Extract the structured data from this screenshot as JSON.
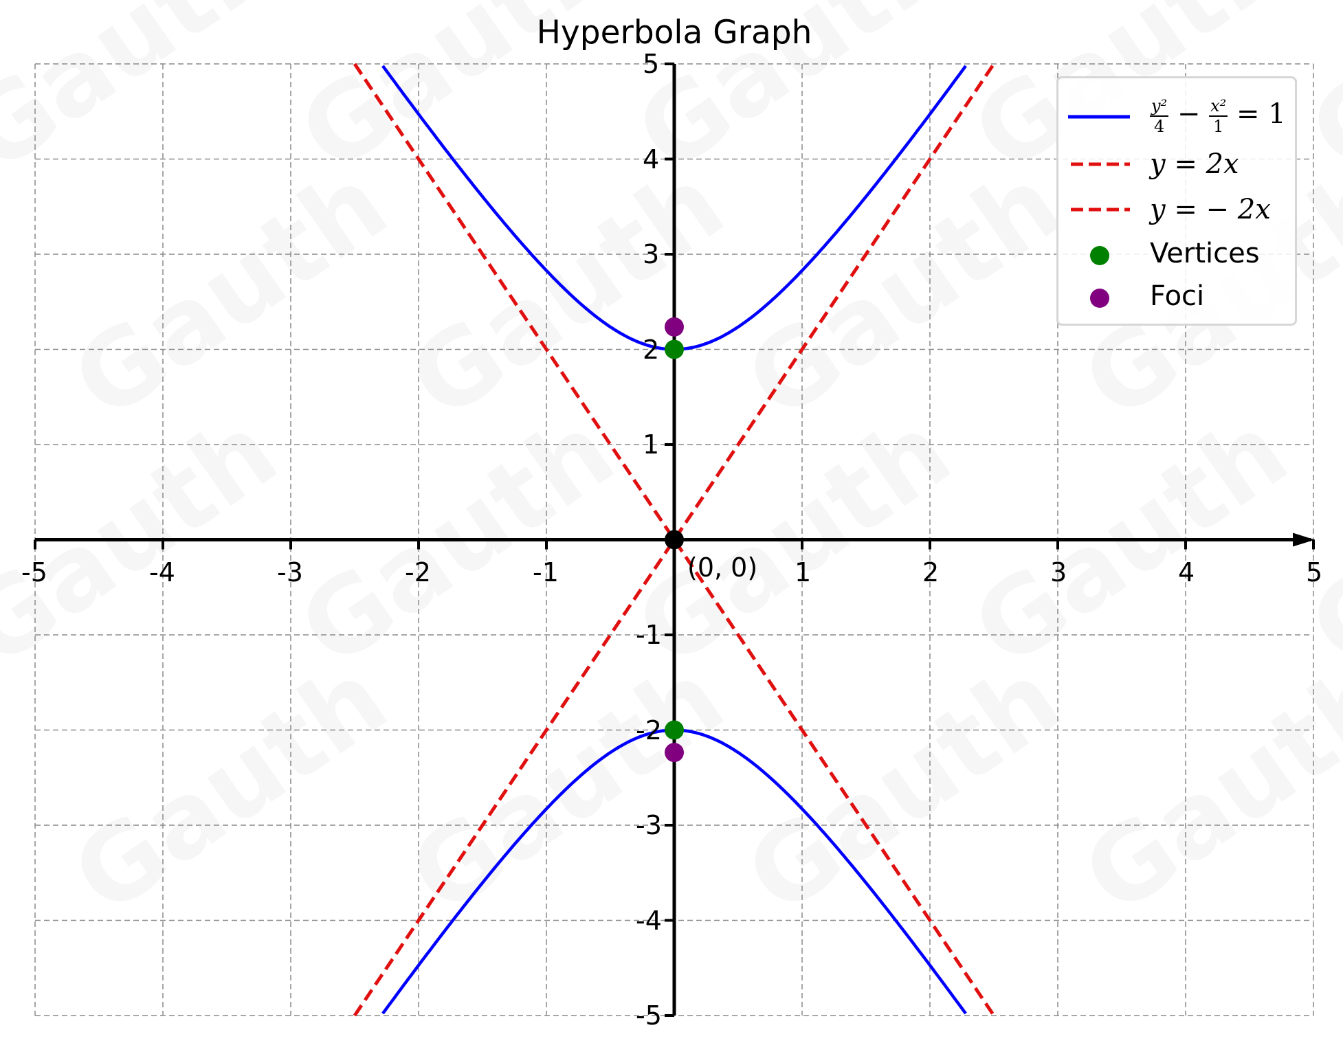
{
  "chart_data": {
    "type": "line",
    "title": "Hyperbola Graph",
    "xlabel": "",
    "ylabel": "",
    "xlim": [
      -5,
      5
    ],
    "ylim": [
      -5,
      5
    ],
    "grid": true,
    "legend_position": "upper right",
    "x_ticks": [
      "-5",
      "-4",
      "-3",
      "-2",
      "-1",
      "1",
      "2",
      "3",
      "4",
      "5"
    ],
    "y_ticks": [
      "5",
      "4",
      "3",
      "2",
      "1",
      "-1",
      "-2",
      "-3",
      "-4",
      "-5"
    ],
    "series": [
      {
        "name": "y^2/4 - x^2/1 = 1",
        "kind": "hyperbola",
        "color": "#0000ff",
        "style": "solid",
        "a": 2,
        "b": 1,
        "orientation": "vertical"
      },
      {
        "name": "y = 2x",
        "kind": "line",
        "color": "#e01010",
        "style": "dashed",
        "slope": 2,
        "intercept": 0
      },
      {
        "name": "y = -2x",
        "kind": "line",
        "color": "#e01010",
        "style": "dashed",
        "slope": -2,
        "intercept": 0
      },
      {
        "name": "Vertices",
        "kind": "scatter",
        "color": "#008000",
        "points": [
          [
            0,
            2
          ],
          [
            0,
            -2
          ]
        ]
      },
      {
        "name": "Foci",
        "kind": "scatter",
        "color": "#800080",
        "points": [
          [
            0,
            2.236
          ],
          [
            0,
            -2.236
          ]
        ]
      }
    ],
    "annotations": [
      {
        "text": "(0, 0)",
        "x": 0,
        "y": 0,
        "marker_color": "#000000"
      }
    ]
  },
  "title": "Hyperbola Graph",
  "legend": {
    "hyperbola": {
      "num1": "y²",
      "den1": "4",
      "minus": "−",
      "num2": "x²",
      "den2": "1",
      "rhs": "= 1"
    },
    "asym1": "y = 2x",
    "asym2": "y = − 2x",
    "vertices": "Vertices",
    "foci": "Foci"
  },
  "origin_label": "(0, 0)",
  "ticks": {
    "x": [
      {
        "v": -5,
        "t": "-5"
      },
      {
        "v": -4,
        "t": "-4"
      },
      {
        "v": -3,
        "t": "-3"
      },
      {
        "v": -2,
        "t": "-2"
      },
      {
        "v": -1,
        "t": "-1"
      },
      {
        "v": 1,
        "t": "1"
      },
      {
        "v": 2,
        "t": "2"
      },
      {
        "v": 3,
        "t": "3"
      },
      {
        "v": 4,
        "t": "4"
      },
      {
        "v": 5,
        "t": "5"
      }
    ],
    "y": [
      {
        "v": 5,
        "t": "5"
      },
      {
        "v": 4,
        "t": "4"
      },
      {
        "v": 3,
        "t": "3"
      },
      {
        "v": 2,
        "t": "2"
      },
      {
        "v": 1,
        "t": "1"
      },
      {
        "v": -1,
        "t": "-1"
      },
      {
        "v": -2,
        "t": "-2"
      },
      {
        "v": -3,
        "t": "-3"
      },
      {
        "v": -4,
        "t": "-4"
      },
      {
        "v": -5,
        "t": "-5"
      }
    ]
  },
  "watermark": "Gauth"
}
